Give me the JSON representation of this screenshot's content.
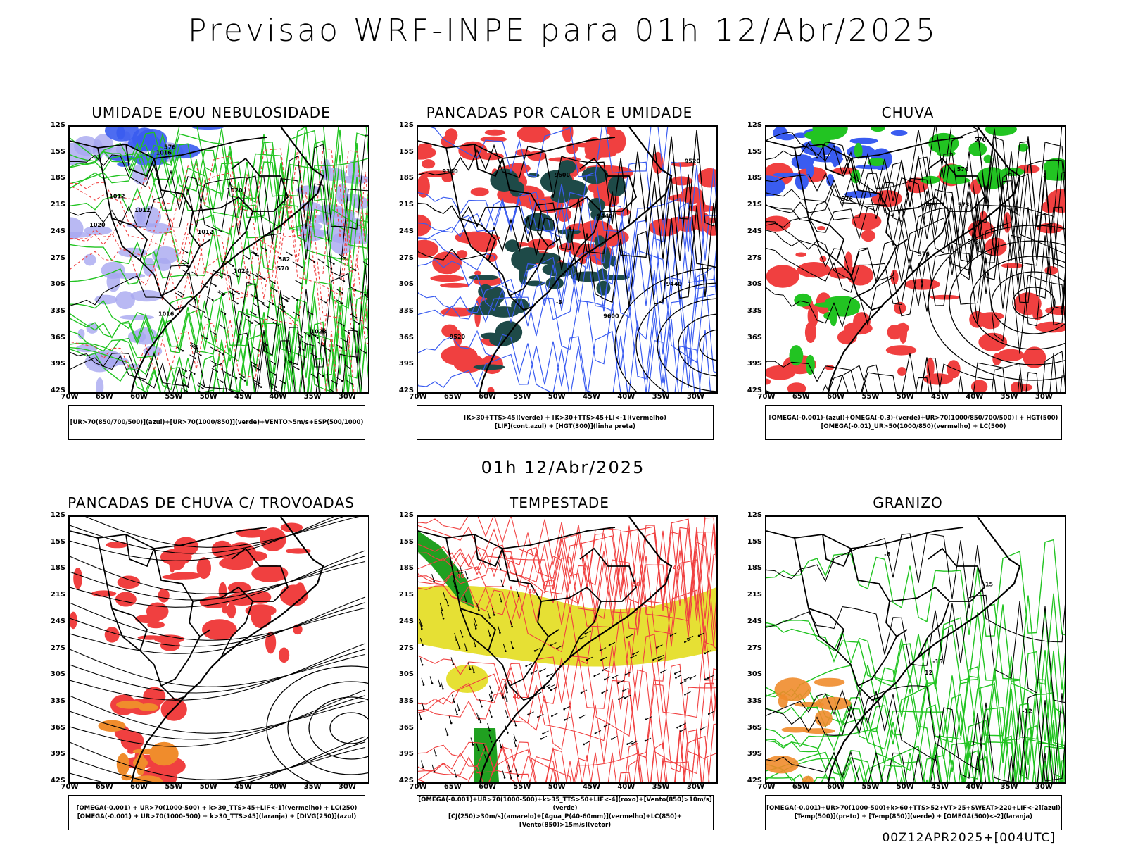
{
  "title": "Previsao WRF-INPE  para 01h 12/Abr/2025",
  "mid_title": "01h 12/Abr/2025",
  "footer": "00Z12APR2025+[004UTC]",
  "lat_labels": [
    "12S",
    "15S",
    "18S",
    "21S",
    "24S",
    "27S",
    "30S",
    "33S",
    "36S",
    "39S",
    "42S"
  ],
  "lon_labels": [
    "70W",
    "65W",
    "60W",
    "55W",
    "50W",
    "45W",
    "40W",
    "35W",
    "30W"
  ],
  "colors": {
    "red": "#f04040",
    "green": "#22c422",
    "blue": "#3a5cf0",
    "lightblue": "#a8a8f0",
    "darkteal": "#1e4a48",
    "yellow": "#e6e034",
    "orange": "#f08c2c"
  },
  "panels": [
    {
      "title": "UMIDADE E/OU NEBULOSIDADE",
      "legend": [
        "[UR>70(850/700/500)](azul)+[UR>70(1000/850)](verde)+VENTO>5m/s+ESP(500/1000)"
      ],
      "labels": [
        "1012",
        "1012",
        "1012",
        "1016",
        "1016",
        "1020",
        "1020",
        "1024",
        "1028",
        "570",
        "576",
        "582"
      ]
    },
    {
      "title": "PANCADAS POR CALOR E UMIDADE",
      "legend": [
        "[K>30+TTS>45](verde) + [K>30+TTS>45+LI<-1](vermelho)",
        "[LIF](cont.azul) + [HGT(300)](linha preta)"
      ],
      "labels": [
        "9600",
        "9600",
        "9520",
        "9520",
        "9440",
        "9440",
        "9360",
        "-3"
      ]
    },
    {
      "title": "CHUVA",
      "legend": [
        "[OMEGA(-0.001)-(azul)+OMEGA(-0.3)-(verde)+UR>70(1000/850/700/500)] + HGT(500)",
        "[OMEGA(-0.01)_UR>50(1000/850)(vermelho) + LC(500)"
      ],
      "labels": [
        "576",
        "576",
        "573",
        "570",
        "576",
        "573"
      ]
    },
    {
      "title": "PANCADAS DE CHUVA C/ TROVOADAS",
      "legend": [
        "[OMEGA(-0.001) + UR>70(1000-500) + k>30_TTS>45+LIF<-1](vermelho) + LC(250)",
        "[OMEGA(-0.001) + UR>70(1000-500) + k>30_TTS>45](laranja) + [DIVG(250)](azul)"
      ],
      "labels": []
    },
    {
      "title": "TEMPESTADE",
      "legend": [
        "[OMEGA(-0.001)+UR>70(1000-500)+k>35_TTS>50+LIF<-4](roxo)+[Vento(850)>10m/s](verde)",
        "[CJ(250)>30m/s](amarelo)+[Agua_P(40-60mm)](vermelho)+LC(850)+[Vento(850)>15m/s](vetor)"
      ],
      "labels": [
        "40",
        "40",
        "40",
        "40",
        "50"
      ]
    },
    {
      "title": "GRANIZO",
      "legend": [
        "[OMEGA(-0.001)+UR>70(1000-500)+k>60+TTS>52+VT>25+SWEAT>220+LIF<-2](azul)",
        "[Temp(500)](preto) + [Temp(850)](verde) + [OMEGA(500)<-2](laranja)"
      ],
      "labels": [
        "-15",
        "-12",
        "12",
        "15",
        "-6"
      ]
    }
  ]
}
